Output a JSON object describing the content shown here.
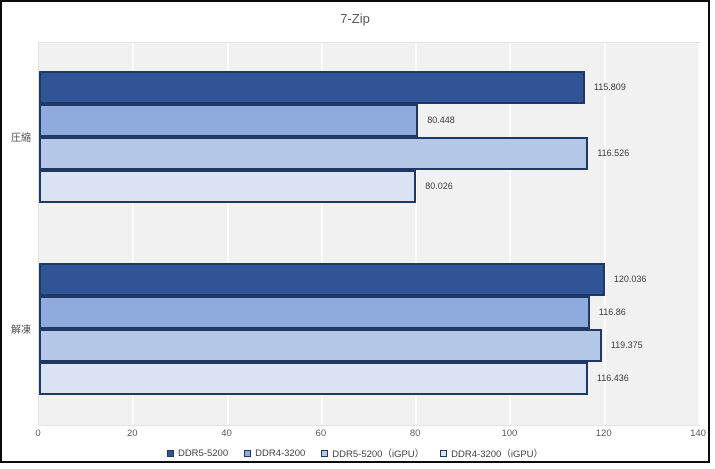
{
  "title": "7-Zip",
  "chart_data": {
    "type": "bar",
    "orientation": "horizontal",
    "title": "7-Zip",
    "categories": [
      "圧縮",
      "解凍"
    ],
    "series": [
      {
        "name": "DDR5-5200",
        "color": "#2F5597",
        "values": [
          115.809,
          120.036
        ]
      },
      {
        "name": "DDR4-3200",
        "color": "#8FAADC",
        "values": [
          80.448,
          116.86
        ]
      },
      {
        "name": "DDR5-5200（iGPU）",
        "color": "#B4C7E7",
        "values": [
          116.526,
          119.375
        ]
      },
      {
        "name": "DDR4-3200（iGPU）",
        "color": "#DAE3F3",
        "values": [
          80.026,
          116.436
        ]
      }
    ],
    "xlabel": "",
    "ylabel": "",
    "xlim": [
      0,
      140
    ],
    "xticks": [
      0,
      20,
      40,
      60,
      80,
      100,
      120,
      140
    ],
    "grid": true,
    "value_labels": true,
    "legend_position": "bottom",
    "bar_border_color": "#1F3864",
    "plot_background": "#f1f1f1",
    "title_color": "#595959"
  }
}
